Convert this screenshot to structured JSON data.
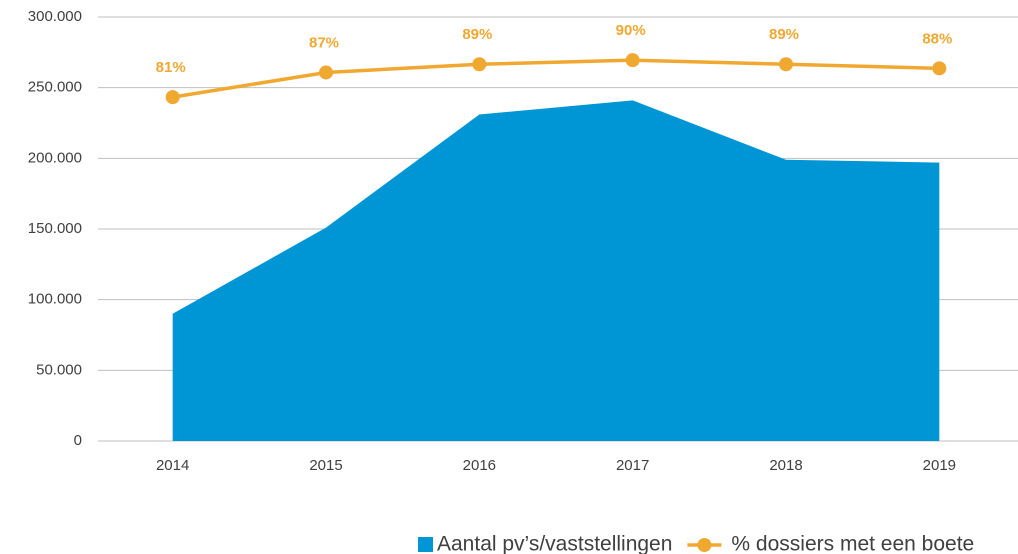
{
  "chart_data": {
    "type": "area_line",
    "categories": [
      "2014",
      "2015",
      "2016",
      "2017",
      "2018",
      "2019"
    ],
    "series": [
      {
        "name": "Aantal pv’s/vaststellingen",
        "type": "area",
        "color": "#0096d6",
        "values": [
          90000,
          151000,
          231000,
          241000,
          199000,
          197000
        ]
      },
      {
        "name": "% dossiers met een boete",
        "type": "line",
        "axis": "y2",
        "color": "#f0a830",
        "values": [
          81,
          87,
          89,
          90,
          89,
          88
        ],
        "value_labels": [
          "81%",
          "87%",
          "89%",
          "90%",
          "89%",
          "88%"
        ]
      }
    ],
    "ylim": [
      0,
      300000
    ],
    "yticks": [
      0,
      {
        "value": 50000,
        "label": "50.000"
      },
      {
        "value": 100000,
        "label": "100.000"
      },
      {
        "value": 150000,
        "label": "150.000"
      },
      {
        "value": 200000,
        "label": "200.000"
      },
      {
        "value": 250000,
        "label": "250.000"
      },
      {
        "value": 300000,
        "label": "300.000"
      }
    ],
    "y2lim": [
      -2.7,
      100.5
    ],
    "grid": true,
    "legend": "bottom"
  }
}
